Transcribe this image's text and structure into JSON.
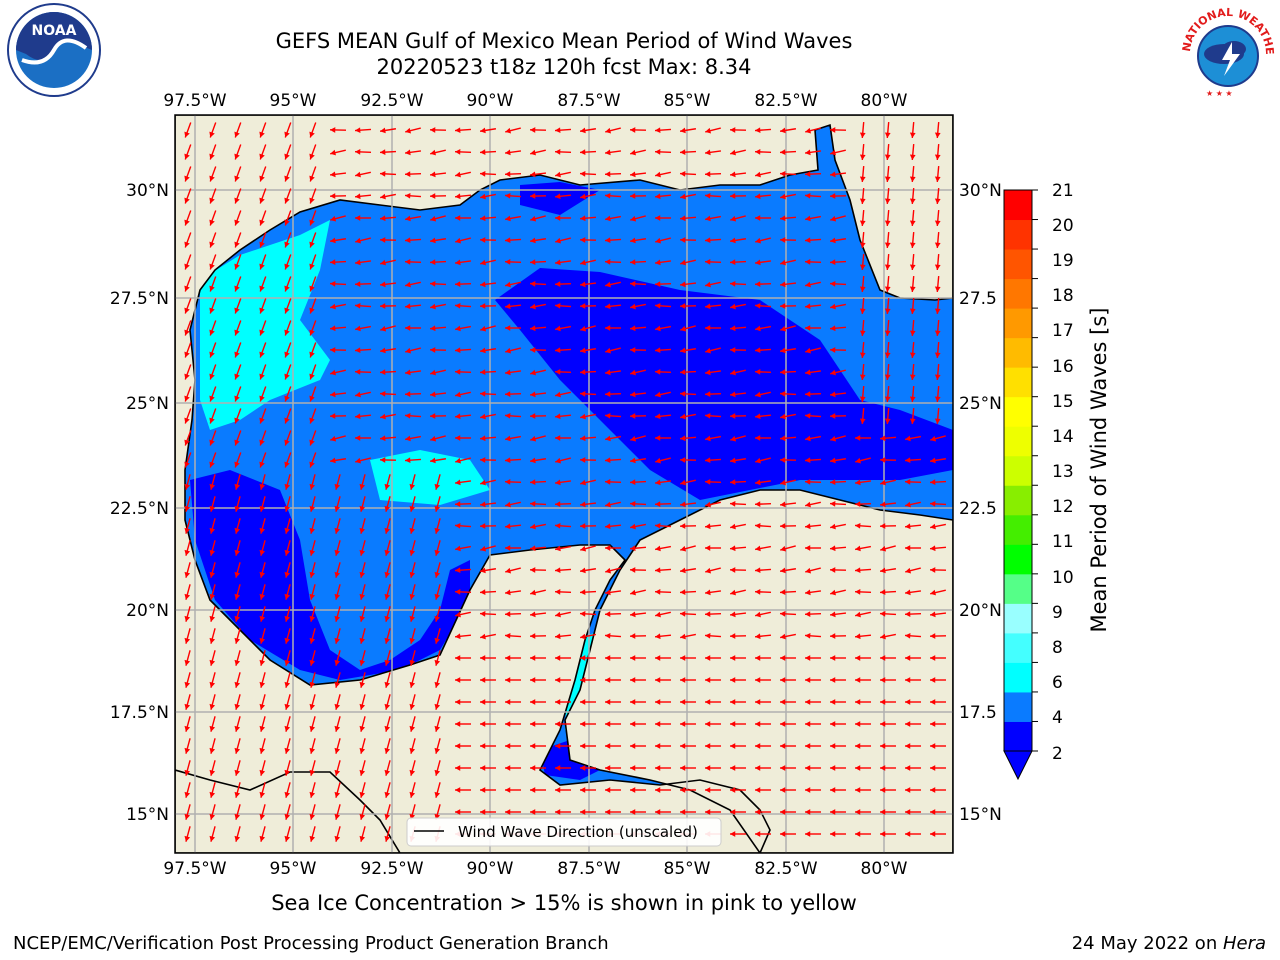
{
  "header": {
    "title_line1": "GEFS MEAN Gulf of Mexico Mean Period of Wind Waves",
    "title_line2": "20220523 t18z 120h fcst   Max: 8.34"
  },
  "logos": {
    "left": {
      "name": "NOAA logo",
      "text": "NOAA"
    },
    "right": {
      "name": "National Weather Service logo",
      "text": "NATIONAL WEATHER SERVICE"
    }
  },
  "map": {
    "lon_labels_top": [
      "97.5°W",
      "95°W",
      "92.5°W",
      "90°W",
      "87.5°W",
      "85°W",
      "82.5°W",
      "80°W"
    ],
    "lon_labels_bottom": [
      "97.5°W",
      "95°W",
      "92.5°W",
      "90°W",
      "87.5°W",
      "85°W",
      "82.5°W",
      "80°W"
    ],
    "lat_labels_left": [
      "30°N",
      "27.5°N",
      "25°N",
      "22.5°N",
      "20°N",
      "17.5°N",
      "15°N"
    ],
    "lat_labels_right": [
      "30°N",
      "27.5",
      "25°N",
      "22.5",
      "20°N",
      "17.5",
      "15°N"
    ],
    "legend_label": "Wind Wave Direction (unscaled)",
    "colors": {
      "land": "#efedd9",
      "blue_dark": "#0000ff",
      "blue": "#0a7bff",
      "cyan": "#00ffff",
      "cyan_light": "#66ffff",
      "arrow": "#ff0000"
    }
  },
  "colorbar": {
    "title": "Mean Period of Wind Waves [s]",
    "tick_labels": [
      "21",
      "20",
      "19",
      "18",
      "17",
      "16",
      "15",
      "14",
      "13",
      "12",
      "11",
      "10",
      "9",
      "8",
      "6",
      "4",
      "2"
    ],
    "colors": [
      "#0000ff",
      "#0a7bff",
      "#00ffff",
      "#44ffff",
      "#99ffff",
      "#55ff88",
      "#00ff00",
      "#44ee00",
      "#88ee00",
      "#ccff00",
      "#eeff00",
      "#ffff00",
      "#ffe000",
      "#ffbb00",
      "#ff9900",
      "#ff7700",
      "#ff5500",
      "#ff3300",
      "#ff0000"
    ]
  },
  "footer": {
    "sea_ice_note": "Sea Ice Concentration > 15% is shown in pink to yellow",
    "credit": "NCEP/EMC/Verification Post Processing Product Generation Branch",
    "date_prefix": "24 May 2022 on ",
    "date_host": "Hera"
  }
}
